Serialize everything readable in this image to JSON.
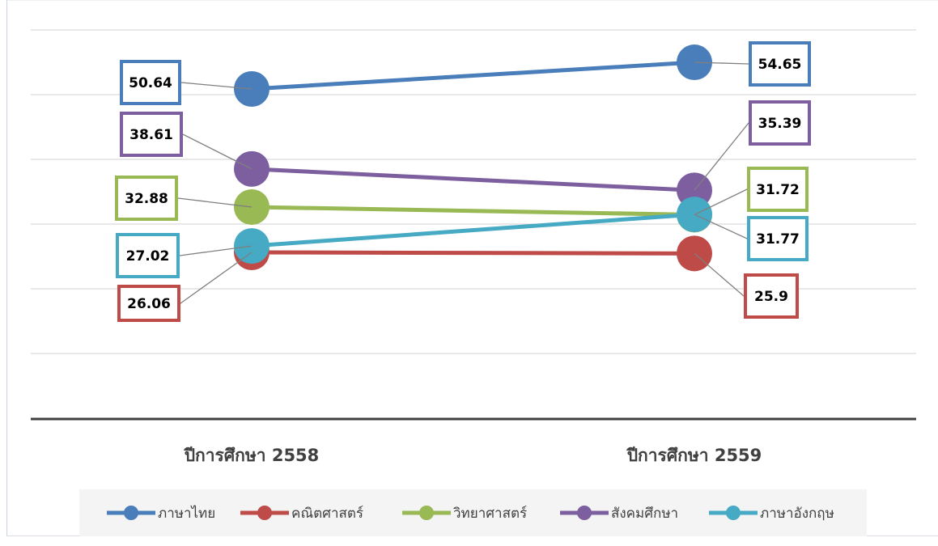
{
  "chart_data": {
    "type": "line",
    "categories": [
      "ปีการศึกษา 2558",
      "ปีการศึกษา 2559"
    ],
    "series": [
      {
        "name": "ภาษาไทย",
        "color": "#4a7ebb",
        "values": [
          50.64,
          54.65
        ]
      },
      {
        "name": "คณิตศาสตร์",
        "color": "#be4b48",
        "values": [
          26.06,
          25.9
        ]
      },
      {
        "name": "วิทยาศาสตร์",
        "color": "#98b954",
        "values": [
          32.88,
          31.72
        ]
      },
      {
        "name": "สังคมศึกษา",
        "color": "#7d5fa0",
        "values": [
          38.61,
          35.39
        ]
      },
      {
        "name": "ภาษาอังกฤษ",
        "color": "#46aac5",
        "values": [
          27.02,
          31.77
        ]
      }
    ],
    "data_labels": [
      {
        "series": 0,
        "labels": [
          "50.64",
          "54.65"
        ]
      },
      {
        "series": 1,
        "labels": [
          "26.06",
          "25.9"
        ]
      },
      {
        "series": 2,
        "labels": [
          "32.88",
          "31.72"
        ]
      },
      {
        "series": 3,
        "labels": [
          "38.61",
          "35.39"
        ]
      },
      {
        "series": 4,
        "labels": [
          "27.02",
          "31.77"
        ]
      }
    ],
    "ylim": [
      10,
      60
    ],
    "grid": true,
    "legend_position": "bottom",
    "title": "",
    "xlabel": "",
    "ylabel": ""
  }
}
